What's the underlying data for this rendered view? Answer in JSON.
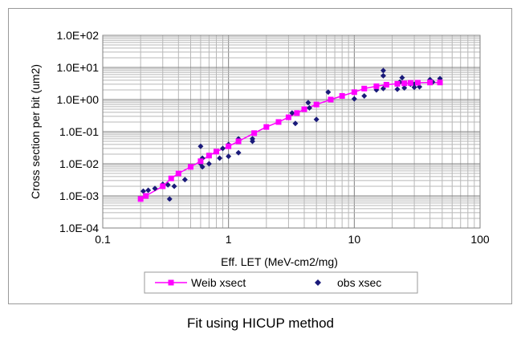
{
  "caption": "Fit using HICUP method",
  "chart_data": {
    "type": "scatter",
    "xlabel": "Eff. LET (MeV-cm2/mg)",
    "ylabel": "Cross section per bit (um2)",
    "x_scale": "log",
    "y_scale": "log",
    "xlim": [
      0.1,
      100
    ],
    "ylim": [
      0.0001,
      100
    ],
    "x_tick_labels": [
      "0.1",
      "1",
      "10",
      "100"
    ],
    "y_tick_labels": [
      "1.0E-04",
      "1.0E-03",
      "1.0E-02",
      "1.0E-01",
      "1.0E+00",
      "1.0E+01",
      "1.0E+02"
    ],
    "grid": true,
    "legend_position": "bottom",
    "series": [
      {
        "name": "Weib xsect",
        "kind": "line-with-square-markers",
        "color": "#ff00ff",
        "points": [
          [
            0.2,
            0.0008
          ],
          [
            0.22,
            0.001
          ],
          [
            0.3,
            0.002
          ],
          [
            0.35,
            0.0035
          ],
          [
            0.4,
            0.005
          ],
          [
            0.5,
            0.008
          ],
          [
            0.6,
            0.012
          ],
          [
            0.7,
            0.018
          ],
          [
            0.8,
            0.024
          ],
          [
            1.0,
            0.035
          ],
          [
            1.2,
            0.05
          ],
          [
            1.6,
            0.09
          ],
          [
            2.0,
            0.14
          ],
          [
            2.5,
            0.2
          ],
          [
            3.0,
            0.28
          ],
          [
            3.5,
            0.38
          ],
          [
            4.0,
            0.5
          ],
          [
            5.0,
            0.7
          ],
          [
            6.5,
            1.0
          ],
          [
            8.0,
            1.3
          ],
          [
            10.0,
            1.7
          ],
          [
            12.0,
            2.2
          ],
          [
            15.0,
            2.6
          ],
          [
            18.0,
            2.9
          ],
          [
            22.0,
            3.1
          ],
          [
            25.0,
            3.2
          ],
          [
            28.0,
            3.3
          ],
          [
            32.0,
            3.35
          ],
          [
            40.0,
            3.4
          ],
          [
            48.0,
            3.4
          ]
        ]
      },
      {
        "name": "obs xsec",
        "kind": "diamond-markers",
        "color": "#1a1a7a",
        "points": [
          [
            0.21,
            0.0014
          ],
          [
            0.23,
            0.0015
          ],
          [
            0.26,
            0.0017
          ],
          [
            0.3,
            0.0023
          ],
          [
            0.33,
            0.0022
          ],
          [
            0.34,
            0.0008
          ],
          [
            0.37,
            0.002
          ],
          [
            0.45,
            0.0032
          ],
          [
            0.6,
            0.035
          ],
          [
            0.6,
            0.01
          ],
          [
            0.62,
            0.008
          ],
          [
            0.62,
            0.015
          ],
          [
            0.7,
            0.01
          ],
          [
            0.85,
            0.015
          ],
          [
            0.9,
            0.03
          ],
          [
            1.0,
            0.017
          ],
          [
            1.0,
            0.04
          ],
          [
            1.2,
            0.022
          ],
          [
            1.2,
            0.05
          ],
          [
            1.2,
            0.06
          ],
          [
            1.55,
            0.05
          ],
          [
            1.55,
            0.06
          ],
          [
            3.2,
            0.38
          ],
          [
            3.4,
            0.18
          ],
          [
            4.3,
            0.8
          ],
          [
            4.4,
            0.55
          ],
          [
            5.0,
            0.24
          ],
          [
            6.2,
            1.7
          ],
          [
            10.0,
            1.05
          ],
          [
            12.0,
            1.3
          ],
          [
            15.0,
            2.0
          ],
          [
            17.0,
            2.2
          ],
          [
            17.0,
            5.5
          ],
          [
            17.0,
            8.0
          ],
          [
            22.0,
            2.1
          ],
          [
            23.0,
            3.5
          ],
          [
            24.0,
            4.8
          ],
          [
            25.0,
            2.3
          ],
          [
            28.0,
            3.0
          ],
          [
            30.0,
            3.0
          ],
          [
            30.0,
            2.4
          ],
          [
            33.0,
            2.5
          ],
          [
            40.0,
            4.2
          ],
          [
            42.0,
            3.5
          ],
          [
            48.0,
            4.5
          ]
        ]
      }
    ]
  }
}
